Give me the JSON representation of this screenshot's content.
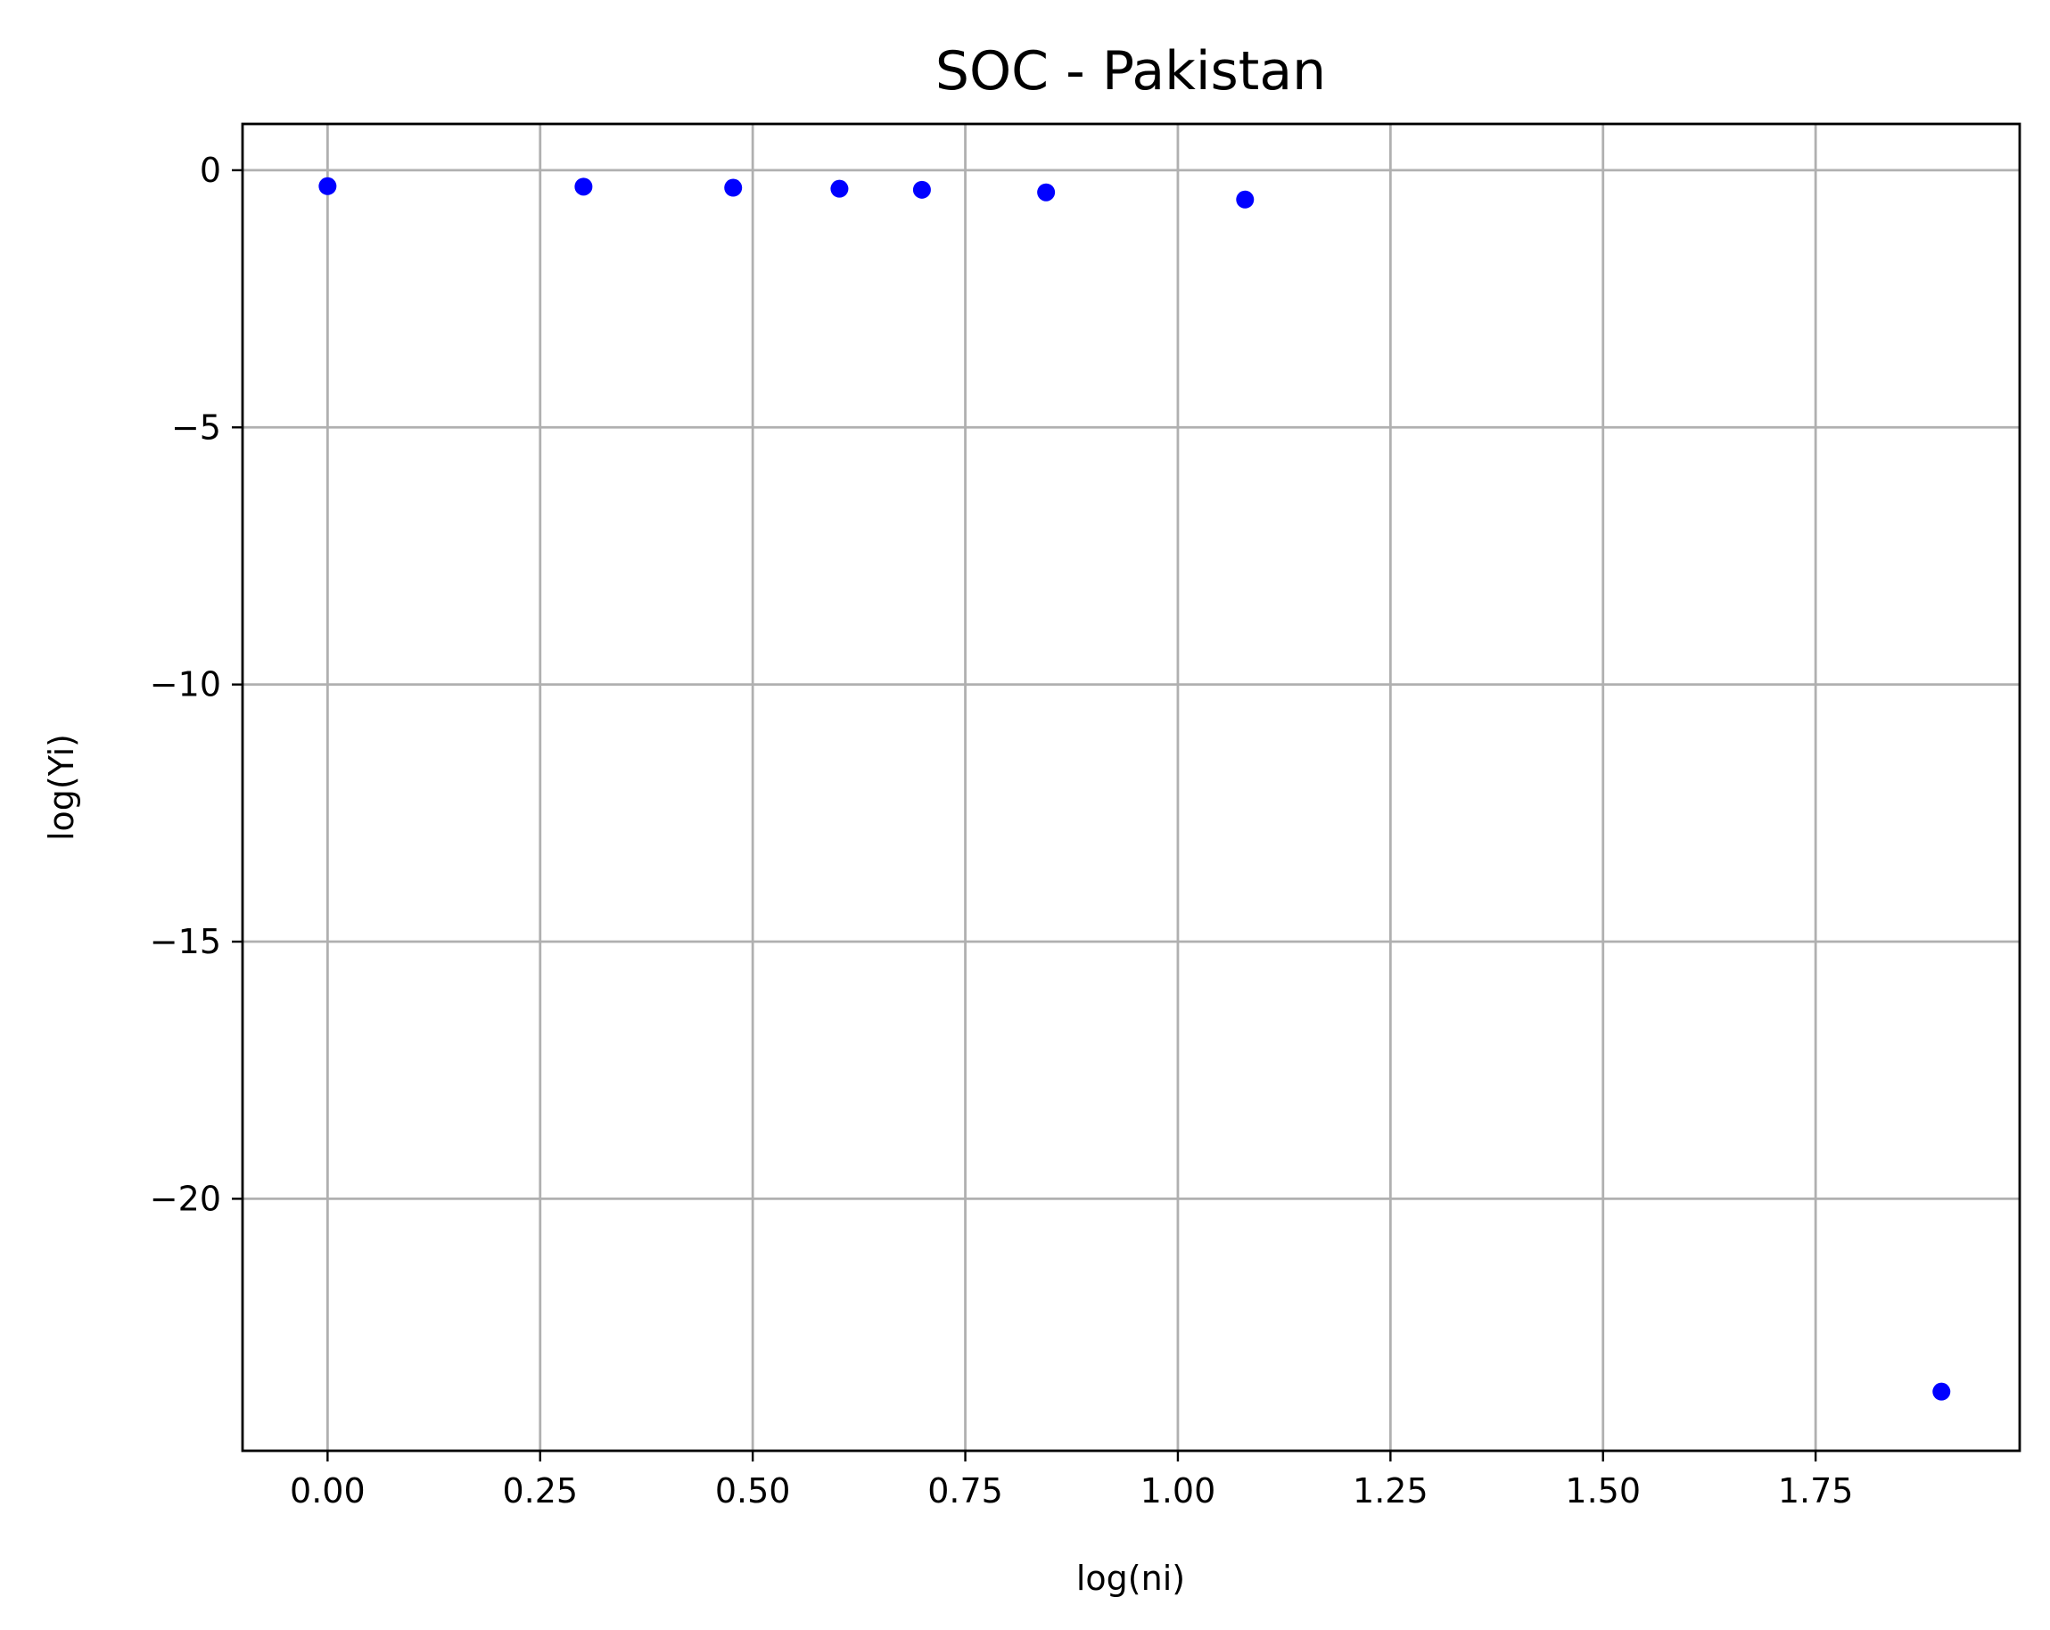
{
  "chart_data": {
    "type": "scatter",
    "title": "SOC - Pakistan",
    "xlabel": "log(ni)",
    "ylabel": "log(Yi)",
    "xlim": [
      -0.1,
      1.99
    ],
    "ylim": [
      -24.9,
      0.9
    ],
    "xticks": [
      0.0,
      0.25,
      0.5,
      0.75,
      1.0,
      1.25,
      1.5,
      1.75
    ],
    "xtick_labels": [
      "0.00",
      "0.25",
      "0.50",
      "0.75",
      "1.00",
      "1.25",
      "1.50",
      "1.75"
    ],
    "yticks": [
      0,
      -5,
      -10,
      -15,
      -20
    ],
    "ytick_labels": [
      "0",
      "−5",
      "−10",
      "−15",
      "−20"
    ],
    "grid": true,
    "marker_color": "#0000ff",
    "series": [
      {
        "x": [
          0.0,
          0.301,
          0.477,
          0.602,
          0.699,
          0.845,
          1.079,
          1.898
        ],
        "y": [
          -0.31,
          -0.32,
          -0.34,
          -0.36,
          -0.38,
          -0.43,
          -0.57,
          -23.75
        ]
      }
    ]
  }
}
